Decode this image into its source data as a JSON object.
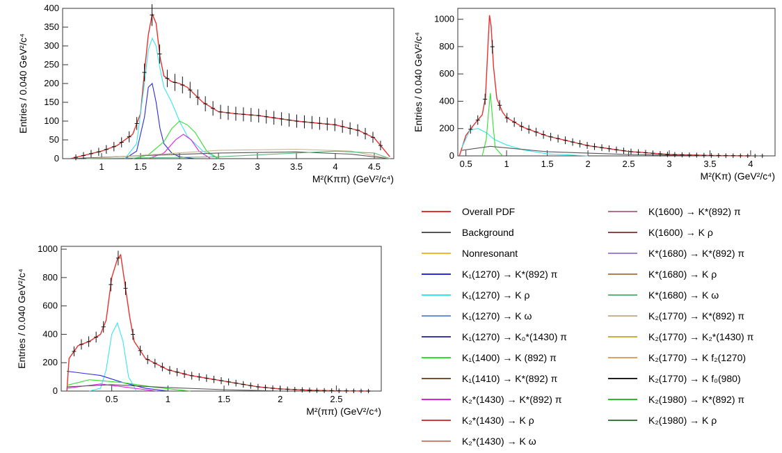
{
  "chart_data": [
    {
      "type": "histogram",
      "panel": "kpipi",
      "xlabel": "M²(Kππ) (GeV²/c⁴)",
      "ylabel": "Entries / 0.040 GeV²/c⁴",
      "xlim": [
        0.5,
        4.75
      ],
      "ylim": [
        0,
        400
      ],
      "xticks": [
        1,
        1.5,
        2,
        2.5,
        3,
        3.5,
        4,
        4.5
      ],
      "yticks": [
        0,
        50,
        100,
        150,
        200,
        250,
        300,
        350,
        400
      ],
      "series": [
        {
          "name": "Overall PDF",
          "color": "#e8302e",
          "x": [
            0.6,
            0.8,
            1.0,
            1.2,
            1.4,
            1.5,
            1.55,
            1.6,
            1.65,
            1.7,
            1.75,
            1.8,
            1.9,
            2.0,
            2.1,
            2.2,
            2.3,
            2.5,
            2.7,
            3.0,
            3.5,
            4.0,
            4.3,
            4.5,
            4.6,
            4.7
          ],
          "y": [
            0,
            10,
            20,
            35,
            65,
            120,
            230,
            330,
            385,
            360,
            270,
            220,
            205,
            200,
            190,
            170,
            150,
            125,
            120,
            115,
            100,
            90,
            75,
            55,
            30,
            5
          ]
        },
        {
          "name": "K1(1270) → K*(892) π",
          "color": "#2a2ae0",
          "x": [
            1.3,
            1.45,
            1.55,
            1.6,
            1.65,
            1.7,
            1.75,
            1.8,
            1.9,
            2.0,
            2.2
          ],
          "y": [
            0,
            20,
            110,
            190,
            200,
            150,
            80,
            40,
            15,
            5,
            0
          ]
        },
        {
          "name": "K1(1270) → K ρ",
          "color": "#35e6f0",
          "x": [
            1.3,
            1.45,
            1.55,
            1.6,
            1.65,
            1.7,
            1.75,
            1.8,
            1.9,
            2.0,
            2.1,
            2.3,
            2.5
          ],
          "y": [
            0,
            40,
            200,
            290,
            320,
            300,
            240,
            190,
            150,
            100,
            60,
            20,
            0
          ]
        },
        {
          "name": "K1(1400) → K (892) π",
          "color": "#2fe02f",
          "x": [
            1.4,
            1.6,
            1.8,
            1.9,
            2.0,
            2.1,
            2.2,
            2.35,
            2.5
          ],
          "y": [
            0,
            10,
            45,
            80,
            100,
            90,
            70,
            20,
            0
          ]
        },
        {
          "name": "K2*(1430) → K*(892) π",
          "color": "#e020e0",
          "x": [
            1.6,
            1.8,
            1.95,
            2.05,
            2.15,
            2.25,
            2.4
          ],
          "y": [
            0,
            15,
            50,
            65,
            50,
            20,
            0
          ]
        },
        {
          "name": "Background",
          "color": "#555555",
          "x": [
            0.6,
            1.5,
            2.5,
            3.5,
            4.2,
            4.7
          ],
          "y": [
            0,
            8,
            15,
            18,
            12,
            0
          ]
        },
        {
          "name": "K2(1770) → K*(892) π",
          "color": "#c8b090",
          "x": [
            0.8,
            1.6,
            2.5,
            3.5,
            4.2,
            4.7
          ],
          "y": [
            0,
            10,
            22,
            25,
            20,
            0
          ]
        },
        {
          "name": "K*(1680) → K ω",
          "color": "#58b878",
          "x": [
            0.8,
            2.5,
            3.5,
            4.0,
            4.5,
            4.7
          ],
          "y": [
            0,
            5,
            15,
            20,
            15,
            0
          ]
        }
      ]
    },
    {
      "type": "histogram",
      "panel": "kpi",
      "xlabel": "M²(Kπ) (GeV²/c⁴)",
      "ylabel": "Entries / 0.040 GeV²/c⁴",
      "xlim": [
        0.4,
        4.3
      ],
      "ylim": [
        0,
        1080
      ],
      "xticks": [
        0.5,
        1,
        1.5,
        2,
        2.5,
        3,
        3.5,
        4
      ],
      "yticks": [
        0,
        200,
        400,
        600,
        800,
        1000
      ],
      "series": [
        {
          "name": "Overall PDF",
          "color": "#e8302e",
          "x": [
            0.42,
            0.5,
            0.6,
            0.7,
            0.74,
            0.77,
            0.79,
            0.81,
            0.84,
            0.88,
            0.95,
            1.0,
            1.2,
            1.5,
            2.0,
            2.5,
            3.0,
            3.5,
            4.0
          ],
          "y": [
            0,
            150,
            230,
            300,
            430,
            800,
            1030,
            950,
            650,
            420,
            320,
            280,
            210,
            145,
            75,
            32,
            10,
            3,
            0
          ]
        },
        {
          "name": "K1(1270) → K ρ",
          "color": "#35e6f0",
          "x": [
            0.45,
            0.55,
            0.65,
            0.75,
            0.85,
            1.0,
            1.2,
            1.5,
            2.0
          ],
          "y": [
            60,
            190,
            200,
            170,
            120,
            80,
            45,
            15,
            0
          ]
        },
        {
          "name": "K1(1400) → K (892) π",
          "color": "#2fe02f",
          "x": [
            0.7,
            0.75,
            0.78,
            0.8,
            0.83,
            0.86,
            0.95
          ],
          "y": [
            0,
            120,
            330,
            460,
            250,
            60,
            0
          ]
        },
        {
          "name": "Background",
          "color": "#555555",
          "x": [
            0.45,
            0.8,
            1.5,
            2.5,
            3.5
          ],
          "y": [
            40,
            70,
            30,
            10,
            0
          ]
        }
      ]
    },
    {
      "type": "histogram",
      "panel": "pipi",
      "xlabel": "M²(ππ) (GeV²/c⁴)",
      "ylabel": "Entries / 0.040 GeV²/c⁴",
      "xlim": [
        0.05,
        2.9
      ],
      "ylim": [
        0,
        1020
      ],
      "xticks": [
        0.5,
        1,
        1.5,
        2,
        2.5
      ],
      "yticks": [
        0,
        200,
        400,
        600,
        800,
        1000
      ],
      "series": [
        {
          "name": "Overall PDF",
          "color": "#e8302e",
          "x": [
            0.1,
            0.12,
            0.2,
            0.3,
            0.4,
            0.45,
            0.5,
            0.55,
            0.58,
            0.62,
            0.66,
            0.7,
            0.8,
            1.0,
            1.2,
            1.5,
            1.8,
            2.0,
            2.3,
            2.5,
            2.8
          ],
          "y": [
            0,
            230,
            320,
            350,
            400,
            500,
            800,
            930,
            960,
            740,
            520,
            350,
            230,
            150,
            110,
            70,
            30,
            15,
            5,
            2,
            0
          ]
        },
        {
          "name": "K1(1270) → K ρ",
          "color": "#35e6f0",
          "x": [
            0.3,
            0.4,
            0.45,
            0.5,
            0.55,
            0.6,
            0.65,
            0.72
          ],
          "y": [
            0,
            20,
            150,
            400,
            480,
            350,
            100,
            0
          ]
        },
        {
          "name": "K1(1270) → K*(892) π",
          "color": "#2a2ae0",
          "x": [
            0.1,
            0.2,
            0.4,
            0.6,
            0.8,
            1.0
          ],
          "y": [
            140,
            130,
            110,
            60,
            20,
            0
          ]
        },
        {
          "name": "K1(1400) → K (892) π",
          "color": "#2fe02f",
          "x": [
            0.1,
            0.3,
            0.6,
            0.9,
            1.2
          ],
          "y": [
            40,
            80,
            60,
            25,
            0
          ]
        },
        {
          "name": "K2*(1430) → K*(892) π",
          "color": "#e020e0",
          "x": [
            0.1,
            0.4,
            0.6,
            0.9
          ],
          "y": [
            20,
            50,
            30,
            0
          ]
        },
        {
          "name": "Background",
          "color": "#555555",
          "x": [
            0.1,
            0.5,
            1.0,
            1.5,
            2.0
          ],
          "y": [
            30,
            45,
            25,
            10,
            0
          ]
        }
      ]
    }
  ],
  "legend": {
    "left": [
      {
        "label": "Overall PDF",
        "color": "#e8302e"
      },
      {
        "label": "Background",
        "color": "#555555"
      },
      {
        "label": "Nonresonant",
        "color": "#f2b632"
      },
      {
        "label": "K₁(1270) → K*(892) π",
        "color": "#2a2ae0"
      },
      {
        "label": "K₁(1270) → K ρ",
        "color": "#35e6f0"
      },
      {
        "label": "K₁(1270) → K ω",
        "color": "#6a8ee0"
      },
      {
        "label": "K₁(1270) → K₀*(1430) π",
        "color": "#3838b0"
      },
      {
        "label": "K₁(1400) → K (892) π",
        "color": "#2fe02f"
      },
      {
        "label": "K₁(1410) → K*(892) π",
        "color": "#7a5030"
      },
      {
        "label": "K₂*(1430) → K*(892) π",
        "color": "#e020e0"
      },
      {
        "label": "K₂*(1430) → K ρ",
        "color": "#d03a3a"
      },
      {
        "label": "K₂*(1430) → K ω",
        "color": "#d08070"
      }
    ],
    "right": [
      {
        "label": "K(1600) → K*(892) π",
        "color": "#b07090"
      },
      {
        "label": "K(1600) → K ρ",
        "color": "#8a4848"
      },
      {
        "label": "K*(1680) → K*(892) π",
        "color": "#a080d0"
      },
      {
        "label": "K*(1680) → K ρ",
        "color": "#b08050"
      },
      {
        "label": "K*(1680) → K ω",
        "color": "#58b878"
      },
      {
        "label": "K₂(1770) → K*(892) π",
        "color": "#c8b090"
      },
      {
        "label": "K₂(1770) → K₂*(1430) π",
        "color": "#c8b040"
      },
      {
        "label": "K₂(1770) → K f₂(1270)",
        "color": "#e0a060"
      },
      {
        "label": "K₂(1770) → K f₀(980)",
        "color": "#202020"
      },
      {
        "label": "K₂(1980) → K*(892) π",
        "color": "#28c028"
      },
      {
        "label": "K₂(1980) → K ρ",
        "color": "#3a7a3a"
      }
    ]
  }
}
